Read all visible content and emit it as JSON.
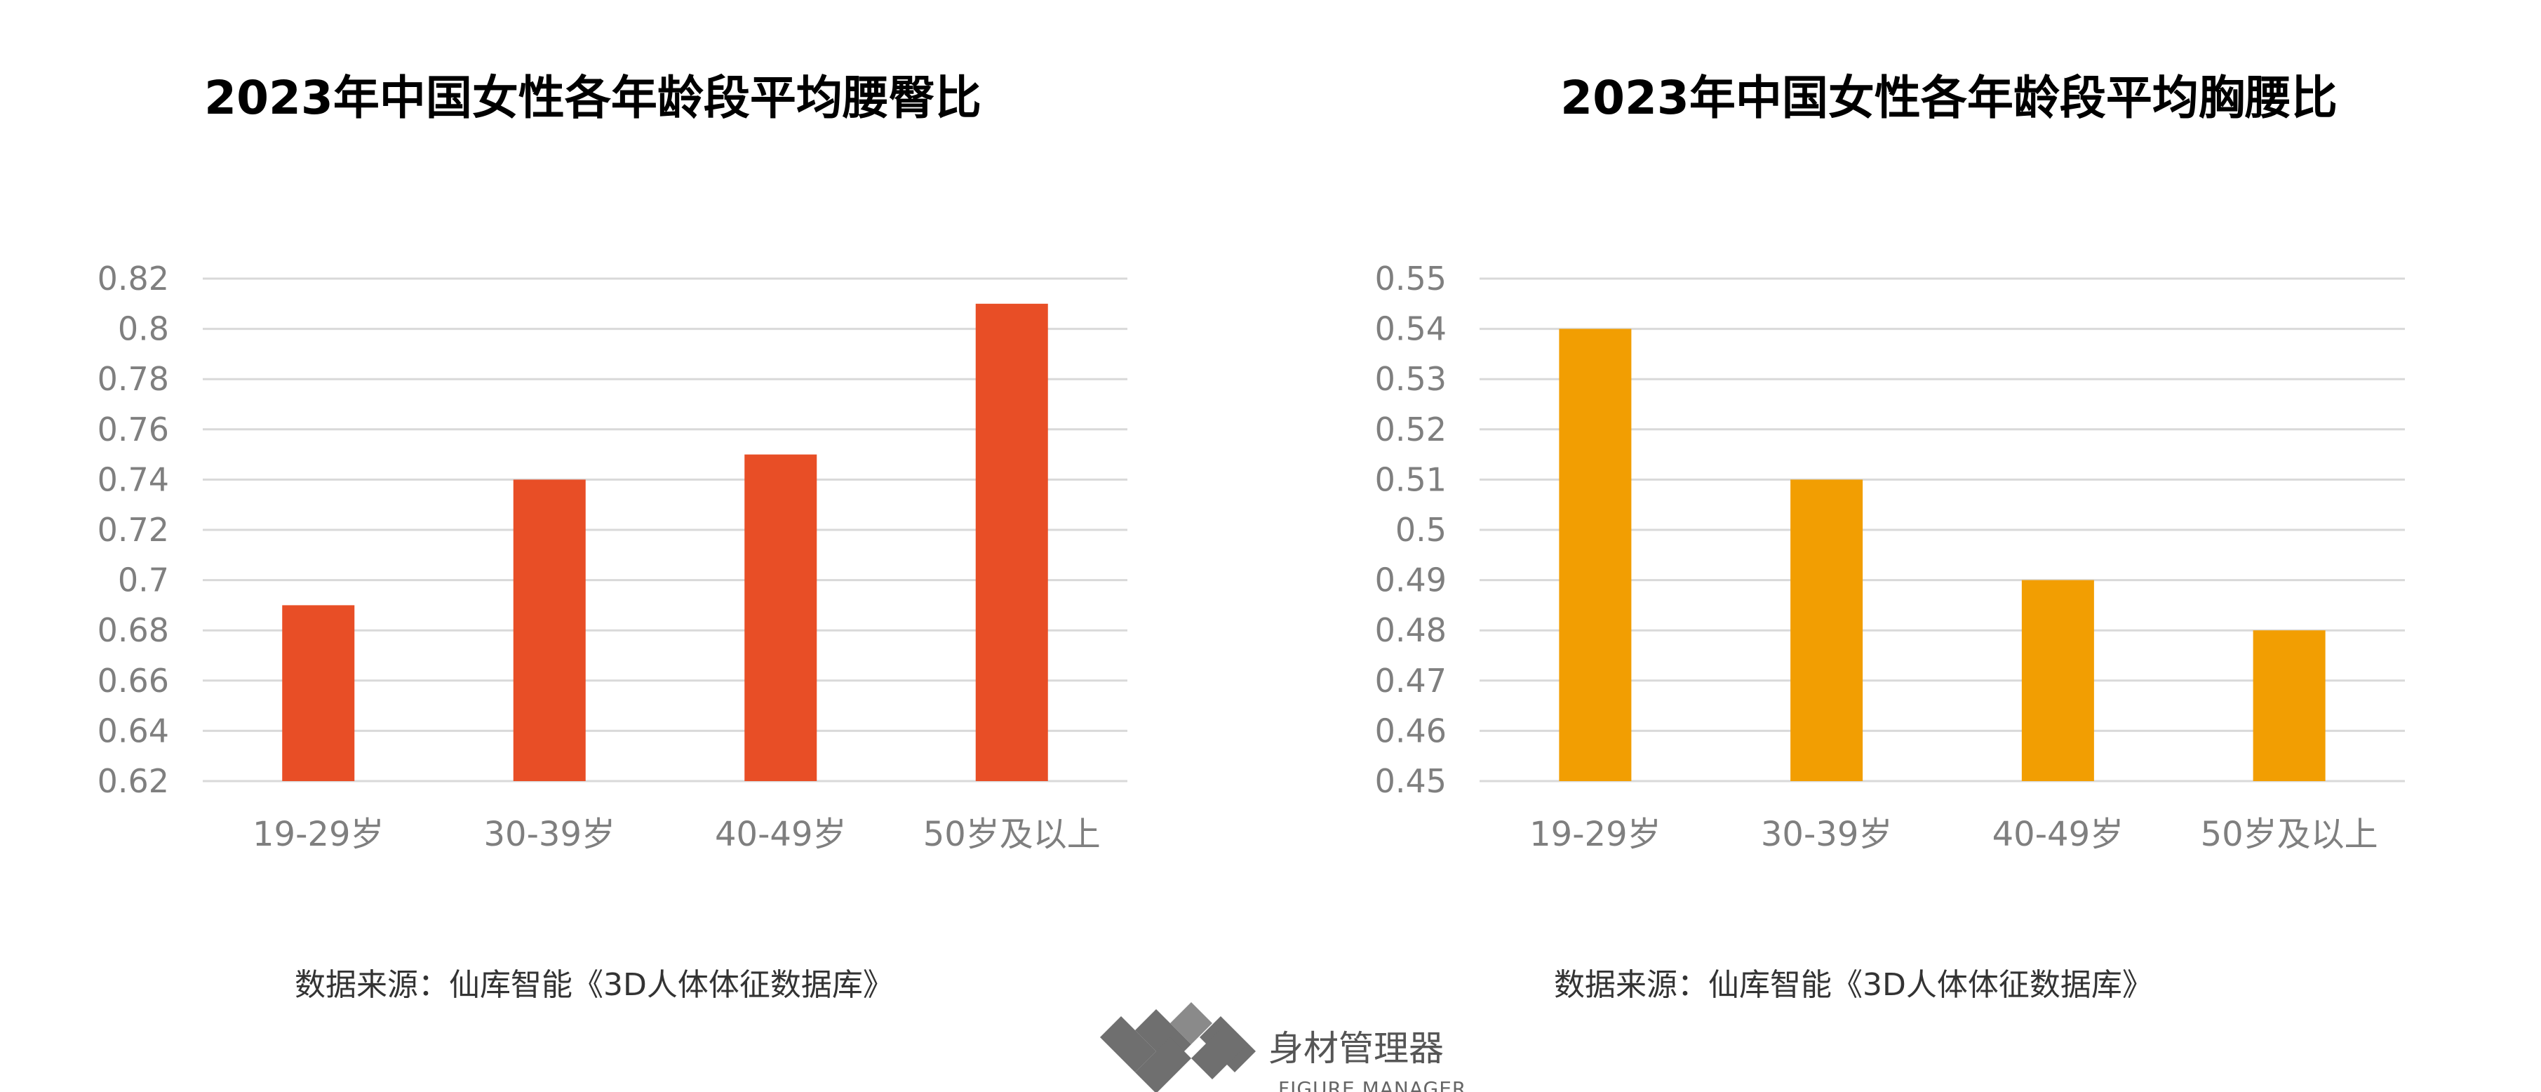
{
  "chart_data": [
    {
      "type": "bar",
      "title": "2023年中国女性各年龄段平均腰臀比",
      "categories": [
        "19-29岁",
        "30-39岁",
        "40-49岁",
        "50岁及以上"
      ],
      "values": [
        0.69,
        0.74,
        0.75,
        0.81
      ],
      "ylim": [
        0.62,
        0.82
      ],
      "yticks": [
        0.62,
        0.64,
        0.66,
        0.68,
        0.7,
        0.72,
        0.74,
        0.76,
        0.78,
        0.8,
        0.82
      ],
      "ytick_labels": [
        "0.62",
        "0.64",
        "0.66",
        "0.68",
        "0.7",
        "0.72",
        "0.74",
        "0.76",
        "0.78",
        "0.8",
        "0.82"
      ],
      "xlabel": "",
      "ylabel": "",
      "grid": true,
      "color": "#e84e26",
      "source": "数据来源：仙库智能《3D人体体征数据库》"
    },
    {
      "type": "bar",
      "title": "2023年中国女性各年龄段平均胸腰比",
      "categories": [
        "19-29岁",
        "30-39岁",
        "40-49岁",
        "50岁及以上"
      ],
      "values": [
        0.54,
        0.51,
        0.49,
        0.48
      ],
      "ylim": [
        0.45,
        0.55
      ],
      "yticks": [
        0.45,
        0.46,
        0.47,
        0.48,
        0.49,
        0.5,
        0.51,
        0.52,
        0.53,
        0.54,
        0.55
      ],
      "ytick_labels": [
        "0.45",
        "0.46",
        "0.47",
        "0.48",
        "0.49",
        "0.5",
        "0.51",
        "0.52",
        "0.53",
        "0.54",
        "0.55"
      ],
      "xlabel": "",
      "ylabel": "",
      "grid": true,
      "color": "#f29e02",
      "source": "数据来源：仙库智能《3D人体体征数据库》"
    }
  ],
  "logo": {
    "name_cn": "身材管理器",
    "name_en": "FIGURE MANAGER",
    "color": "#6f6f6f"
  }
}
